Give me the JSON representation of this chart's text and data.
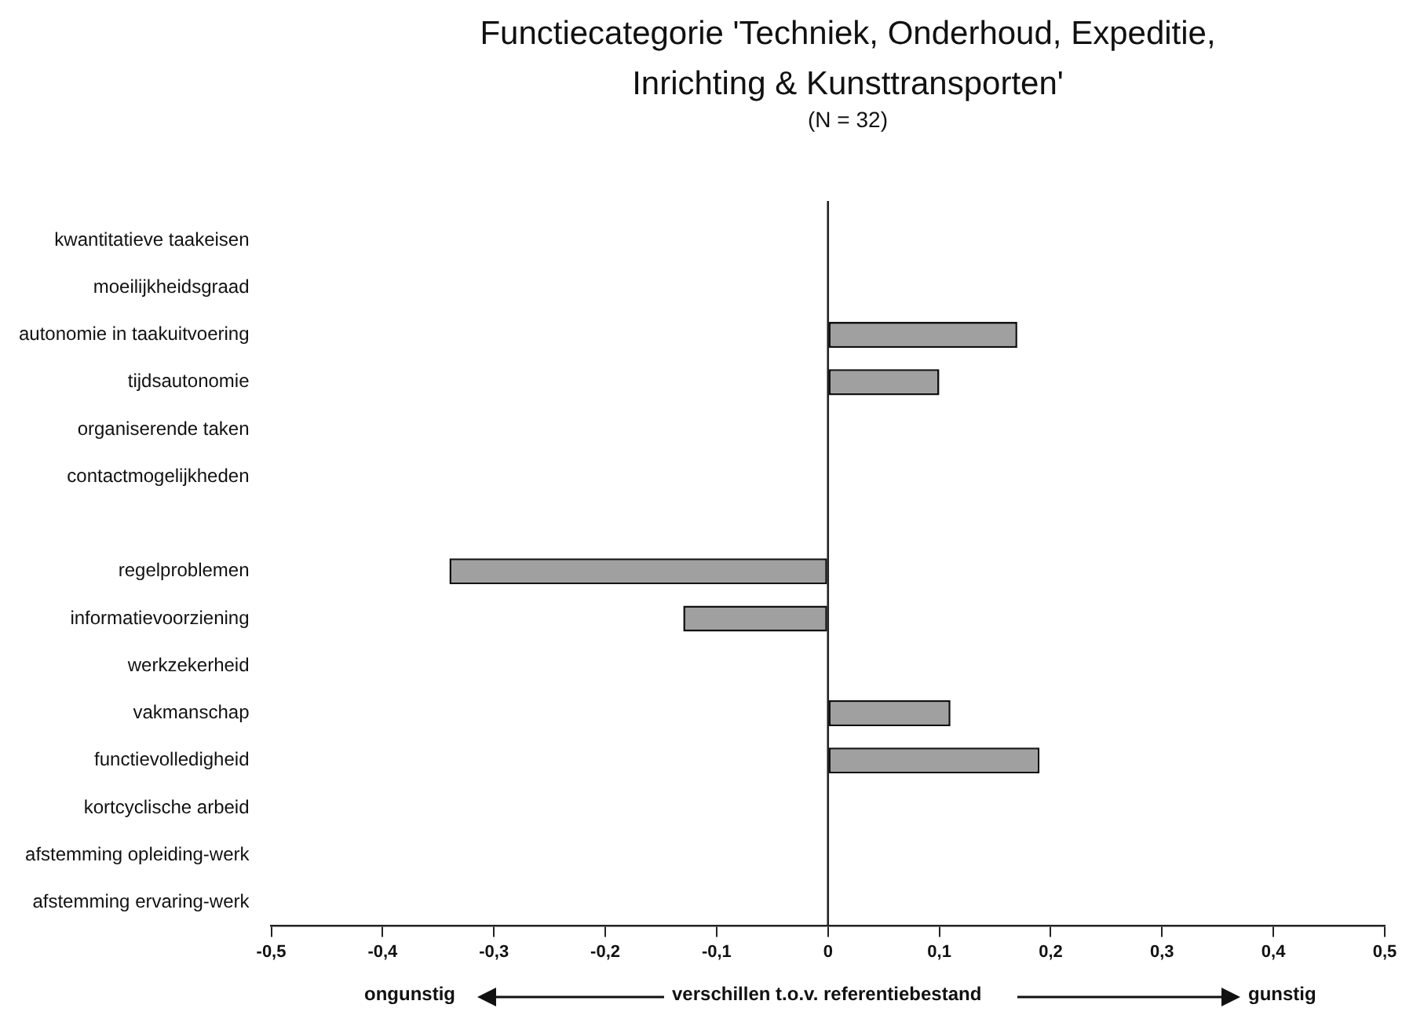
{
  "chart_data": {
    "type": "bar",
    "orientation": "horizontal",
    "title": "Functiecategorie 'Techniek, Onderhoud, Expeditie, Inrichting & Kunsttransporten'",
    "subtitle": "(N = 32)",
    "categories": [
      "kwantitatieve taakeisen",
      "moeilijkheidsgraad",
      "autonomie in taakuitvoering",
      "tijdsautonomie",
      "organiserende taken",
      "contactmogelijkheden",
      null,
      "regelproblemen",
      "informatievoorziening",
      "werkzekerheid",
      "vakmanschap",
      "functievolledigheid",
      "kortcyclische arbeid",
      "afstemming opleiding-werk",
      "afstemming ervaring-werk"
    ],
    "values": [
      null,
      null,
      0.17,
      0.1,
      null,
      null,
      null,
      -0.34,
      -0.13,
      null,
      0.11,
      0.19,
      null,
      null,
      null
    ],
    "color": "#a0a0a0",
    "xlim": [
      -0.5,
      0.5
    ],
    "xticks": [
      {
        "value": -0.5,
        "label": "-0,5"
      },
      {
        "value": -0.4,
        "label": "-0,4"
      },
      {
        "value": -0.3,
        "label": "-0,3"
      },
      {
        "value": -0.2,
        "label": "-0,2"
      },
      {
        "value": -0.1,
        "label": "-0,1"
      },
      0,
      {
        "value": 0.1,
        "label": "0,1"
      },
      {
        "value": 0.2,
        "label": "0,2"
      },
      {
        "value": 0.3,
        "label": "0,3"
      },
      {
        "value": 0.4,
        "label": "0,4"
      },
      {
        "value": 0.5,
        "label": "0,5"
      }
    ],
    "ref_lines": [
      {
        "axis": "x",
        "value": 0
      }
    ],
    "grid": false,
    "legend": false,
    "annotations": [
      "ongunstig",
      "verschillen t.o.v. referentiebestand",
      "gunstig"
    ]
  }
}
